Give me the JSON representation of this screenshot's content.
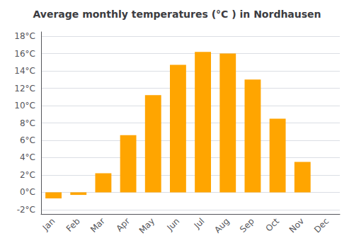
{
  "chart_data": {
    "type": "bar",
    "title": "Average monthly temperatures (°C ) in Nordhausen",
    "categories": [
      "Jan",
      "Feb",
      "Mar",
      "Apr",
      "May",
      "Jun",
      "Jul",
      "Aug",
      "Sep",
      "Oct",
      "Nov",
      "Dec"
    ],
    "values": [
      -0.7,
      -0.3,
      2.2,
      6.6,
      11.2,
      14.7,
      16.2,
      16.0,
      13.0,
      8.5,
      3.5,
      0.0
    ],
    "color": "#FFA500",
    "ylim": [
      -2.5,
      18.5
    ],
    "yticks": [
      {
        "value": -2,
        "label": "-2°C"
      },
      {
        "value": 0,
        "label": "0°C"
      },
      {
        "value": 2,
        "label": "2°C"
      },
      {
        "value": 4,
        "label": "4°C"
      },
      {
        "value": 6,
        "label": "6°C"
      },
      {
        "value": 8,
        "label": "8°C"
      },
      {
        "value": 10,
        "label": "10°C"
      },
      {
        "value": 12,
        "label": "12°C"
      },
      {
        "value": 14,
        "label": "14°C"
      },
      {
        "value": 16,
        "label": "16°C"
      },
      {
        "value": 18,
        "label": "18°C"
      }
    ],
    "grid": true
  }
}
